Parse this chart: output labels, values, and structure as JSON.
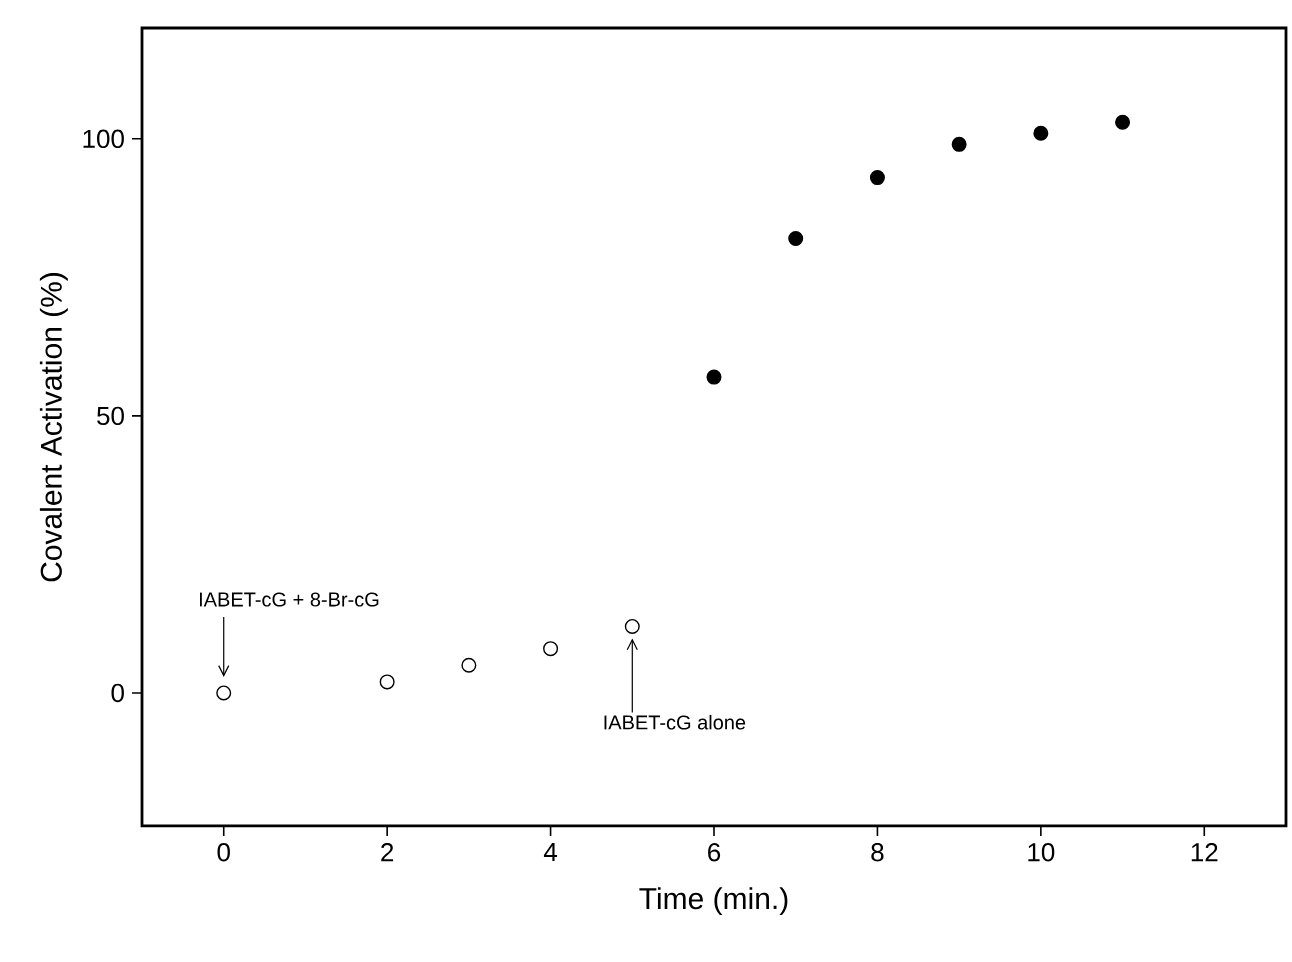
{
  "chart_data": {
    "type": "scatter",
    "xlabel": "Time (min.)",
    "ylabel": "Covalent Activation (%)",
    "xlim": [
      -1,
      13
    ],
    "ylim": [
      -24,
      120
    ],
    "xticks": [
      0,
      2,
      4,
      6,
      8,
      10,
      12
    ],
    "yticks": [
      0,
      50,
      100
    ],
    "grid": false,
    "marker": "circle",
    "series": [
      {
        "color": "#ffffff",
        "x": [
          0,
          2,
          3,
          4,
          5
        ],
        "values": [
          0,
          2,
          5,
          8,
          12
        ]
      },
      {
        "color": "#000000",
        "x": [
          6,
          7,
          8,
          9,
          10,
          11
        ],
        "values": [
          57,
          82,
          93,
          99,
          101,
          103
        ]
      }
    ],
    "annotations": [
      {
        "text": "IABET-cG + 8-Br-cG",
        "x": 0,
        "y": 0
      },
      {
        "text": "IABET-cG alone",
        "x": 5,
        "y": 12
      }
    ]
  }
}
